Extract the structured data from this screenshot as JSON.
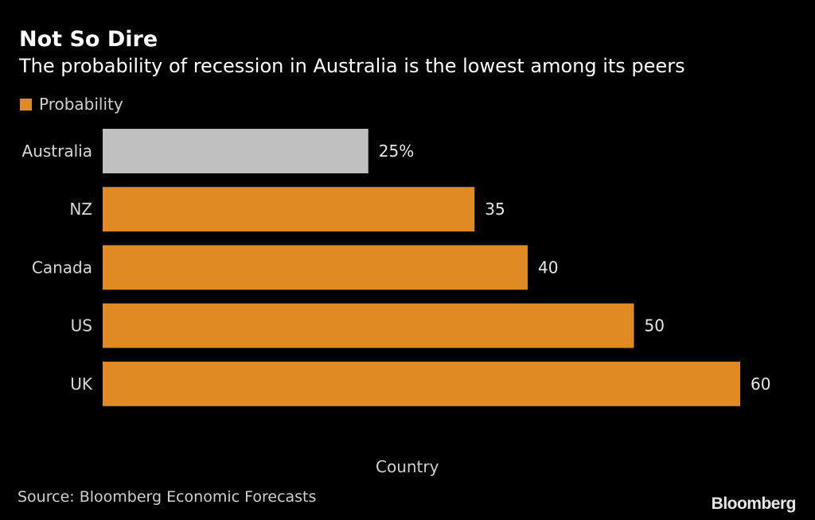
{
  "chart_data": {
    "type": "bar",
    "orientation": "horizontal",
    "title": "Not So Dire",
    "subtitle": "The probability of recession in Australia is the lowest among its peers",
    "legend": [
      {
        "label": "Probability",
        "color": "#e08a23"
      }
    ],
    "legend_position": "top-left",
    "categories": [
      "Australia",
      "NZ",
      "Canada",
      "US",
      "UK"
    ],
    "values": [
      25,
      35,
      40,
      50,
      60
    ],
    "value_labels": [
      "25%",
      "35",
      "40",
      "50",
      "60"
    ],
    "bar_colors": [
      "#c0c0c0",
      "#e08a23",
      "#e08a23",
      "#e08a23",
      "#e08a23"
    ],
    "highlight": "Australia",
    "xlabel": "Country",
    "ylabel": "",
    "xlim": [
      0,
      60
    ],
    "grid": false,
    "source": "Source: Bloomberg Economic Forecasts",
    "brand": "Bloomberg"
  }
}
